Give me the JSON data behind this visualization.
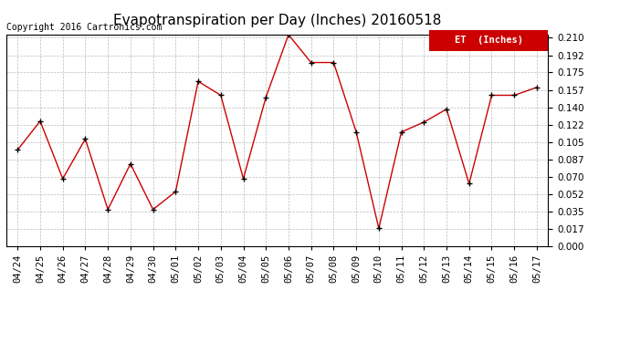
{
  "title": "Evapotranspiration per Day (Inches) 20160518",
  "copyright": "Copyright 2016 Cartronics.com",
  "legend_label": "ET  (Inches)",
  "legend_bg": "#CC0000",
  "legend_text_color": "#FFFFFF",
  "line_color": "#CC0000",
  "marker_color": "#000000",
  "bg_color": "#FFFFFF",
  "plot_bg_color": "#FFFFFF",
  "grid_color": "#BBBBBB",
  "dates": [
    "04/24",
    "04/25",
    "04/26",
    "04/27",
    "04/28",
    "04/29",
    "04/30",
    "05/01",
    "05/02",
    "05/03",
    "05/04",
    "05/05",
    "05/06",
    "05/07",
    "05/08",
    "05/09",
    "05/10",
    "05/11",
    "05/12",
    "05/13",
    "05/14",
    "05/15",
    "05/16",
    "05/17"
  ],
  "values": [
    0.097,
    0.126,
    0.068,
    0.108,
    0.037,
    0.083,
    0.037,
    0.055,
    0.166,
    0.152,
    0.068,
    0.15,
    0.213,
    0.185,
    0.185,
    0.115,
    0.018,
    0.115,
    0.125,
    0.138,
    0.063,
    0.152,
    0.152,
    0.16
  ],
  "ylim": [
    0.0,
    0.2135
  ],
  "yticks": [
    0.0,
    0.017,
    0.035,
    0.052,
    0.07,
    0.087,
    0.105,
    0.122,
    0.14,
    0.157,
    0.175,
    0.192,
    0.21
  ],
  "title_fontsize": 11,
  "tick_fontsize": 7.5,
  "copyright_fontsize": 7
}
